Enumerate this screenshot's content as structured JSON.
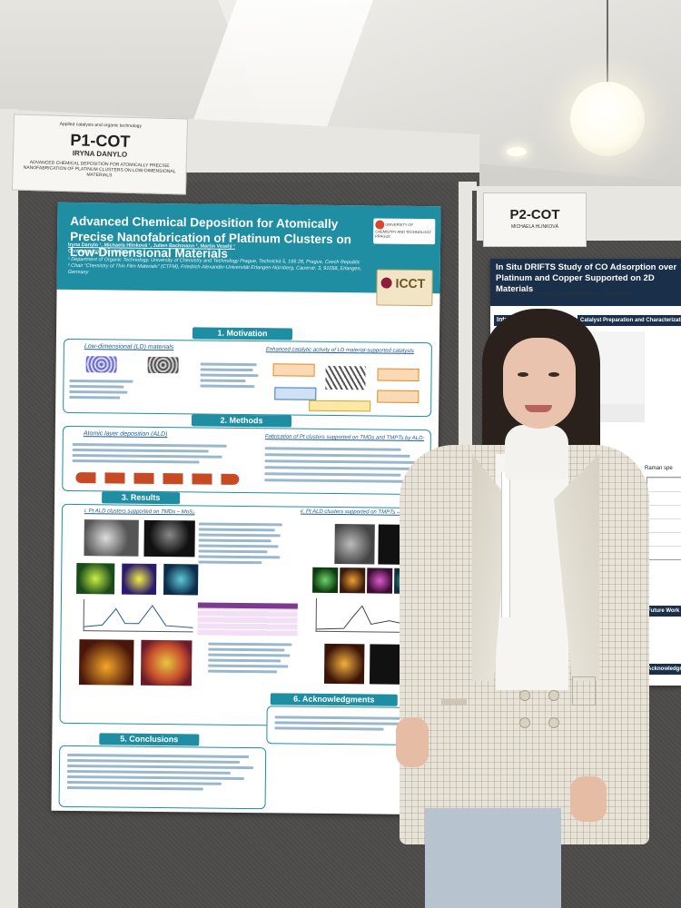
{
  "left_card": {
    "line1": "Applied catalysis and organic technology",
    "code": "P1-COT",
    "name": "IRYNA DANYLO",
    "subtitle": "ADVANCED CHEMICAL DEPOSITION FOR ATOMICALLY PRECISE NANOFABRICATION OF PLATINUM CLUSTERS ON LOW-DIMENSIONAL MATERIALS"
  },
  "right_card": {
    "code": "P2-COT",
    "name": "MICHAELA HLINKOVÁ"
  },
  "poster": {
    "title": "Advanced Chemical Deposition for Atomically Precise Nanofabrication of Platinum Clusters on Low-Dimensional Materials",
    "authors": "Iryna Danylo ¹, Michaela Hlinková ¹, Julien Bachmann ², Martin Veselý ¹",
    "contact": "Contact author: danylo@vscht.cz",
    "affil1": "¹ Department of Organic Technology, University of Chemistry and Technology Prague, Technická 5, 166 28, Prague, Czech Republic",
    "affil2": "² Chair \"Chemistry of Thin Film Materials\" (CTFM), Friedrich-Alexander-Universität Erlangen-Nürnberg, Cauerstr. 3, 91058, Erlangen, Germany",
    "logo1": "UNIVERSITY OF CHEMISTRY AND TECHNOLOGY PRAGUE",
    "logo2": "ICCT",
    "sections": {
      "motivation": "1. Motivation",
      "methods": "2. Methods",
      "results": "3. Results",
      "conclusions": "5. Conclusions",
      "acknowledgments": "6. Acknowledgments"
    },
    "motivation_left": "Low-dimensional (LD) materials",
    "motivation_right": "Enhanced catalytic activity of LD material-supported catalysts",
    "methods_left": "Atomic layer deposition (ALD)",
    "methods_right": "Fabrication of Pt clusters supported on TMDs and TMPTs by ALD:",
    "results_left": "i. Pt ALD clusters supported on TMDs – MoS₂",
    "results_right": "ii. Pt ALD clusters supported on TMPTs – FePS₃"
  },
  "poster2": {
    "title": "In Situ DRIFTS Study of CO Adsorption over Platinum and Copper Supported on 2D Materials",
    "authors": "Michaela Hlinková ¹, Iryna Danylo ¹, Martina Pitínová ¹, Martin Veselý ¹",
    "intro": "Introd",
    "catalyst": "Catalyst Preparation and Characterization",
    "raman": "Raman spe",
    "future": "Future Work",
    "ack": "Acknowledgm"
  }
}
